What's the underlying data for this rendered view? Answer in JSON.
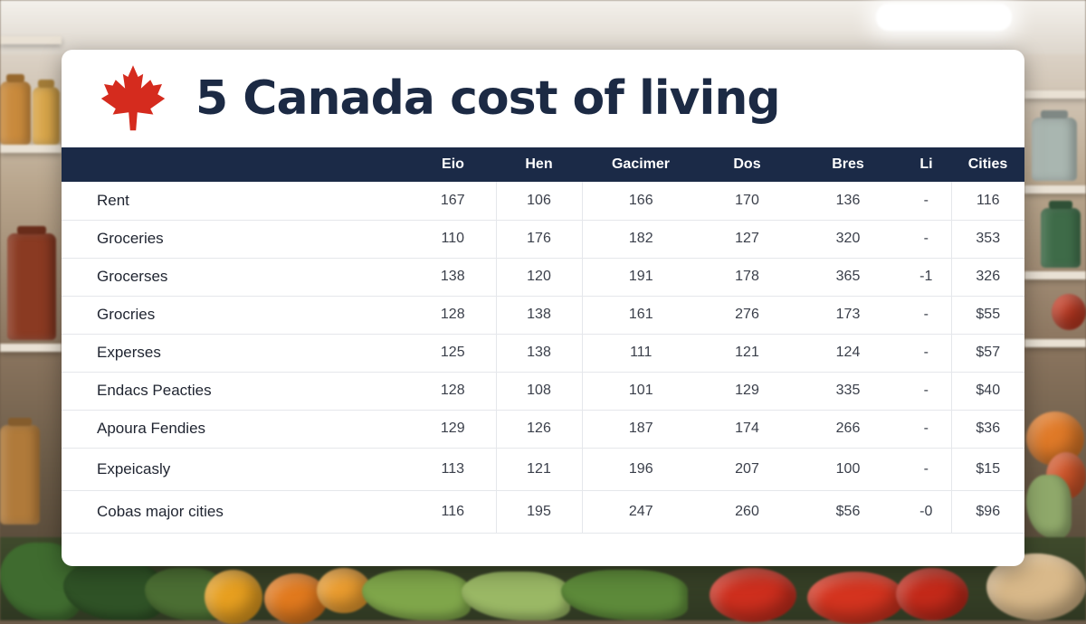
{
  "title": "5 Canada cost of living",
  "flag_icon": "maple-leaf-icon",
  "colors": {
    "header_bg": "#1b2a47",
    "title_text": "#1c2a44",
    "maple_red": "#d52b1e"
  },
  "table": {
    "headers": [
      "",
      "Eio",
      "Hen",
      "Gacimer",
      "Dos",
      "Bres",
      "Li",
      "Cities"
    ],
    "rows": [
      {
        "label": "Rent",
        "cells": [
          "167",
          "106",
          "166",
          "170",
          "136",
          "-",
          "116"
        ]
      },
      {
        "label": "Groceries",
        "cells": [
          "110",
          "176",
          "182",
          "127",
          "320",
          "-",
          "353"
        ]
      },
      {
        "label": "Grocerses",
        "cells": [
          "138",
          "120",
          "191",
          "178",
          "365",
          "-1",
          "326"
        ]
      },
      {
        "label": "Grocries",
        "cells": [
          "128",
          "138",
          "161",
          "276",
          "173",
          "-",
          "$55"
        ]
      },
      {
        "label": "Experses",
        "cells": [
          "125",
          "138",
          "111",
          "121",
          "124",
          "-",
          "$57"
        ]
      },
      {
        "label": "Endacs Peacties",
        "cells": [
          "128",
          "108",
          "101",
          "129",
          "335",
          "-",
          "$40"
        ]
      },
      {
        "label": "Apoura Fendies",
        "cells": [
          "129",
          "126",
          "187",
          "174",
          "266",
          "-",
          "$36"
        ]
      },
      {
        "label": "Expeicasly",
        "cells": [
          "113",
          "121",
          "196",
          "207",
          "100",
          "-",
          "$15"
        ]
      },
      {
        "label": "Cobas major cities",
        "cells": [
          "116",
          "195",
          "247",
          "260",
          "$56",
          "-0",
          "$96"
        ]
      }
    ]
  }
}
